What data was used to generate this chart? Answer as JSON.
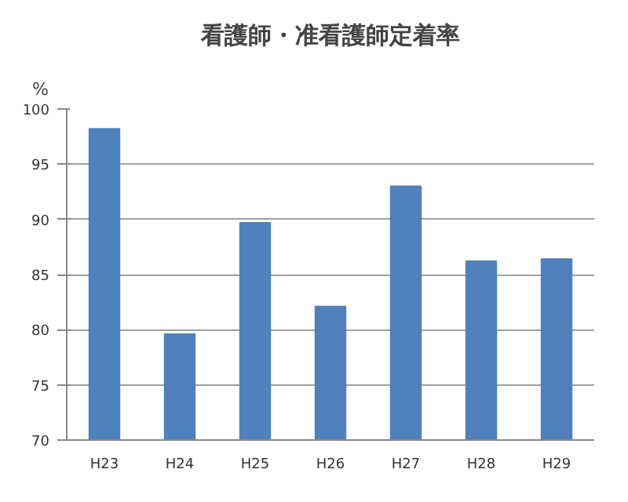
{
  "chart_data": {
    "type": "bar",
    "title": "看護師・准看護師定着率",
    "ylabel": "%",
    "categories": [
      "H23",
      "H24",
      "H25",
      "H26",
      "H27",
      "H28",
      "H29"
    ],
    "values": [
      98.2,
      79.6,
      89.7,
      82.1,
      93.0,
      86.2,
      86.4
    ],
    "color": "#4f81bd",
    "ylim": [
      70,
      100
    ],
    "yticks": [
      70,
      75,
      80,
      85,
      90,
      95,
      100
    ],
    "grid": "y"
  }
}
